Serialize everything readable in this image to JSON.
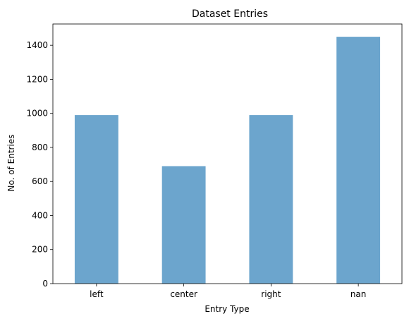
{
  "chart_data": {
    "type": "bar",
    "title": "Dataset Entries",
    "xlabel": "Entry Type",
    "ylabel": "No. of Entries",
    "categories": [
      "left",
      "center",
      "right",
      "nan"
    ],
    "values": [
      990,
      690,
      990,
      1450
    ],
    "ylim": [
      0,
      1525
    ],
    "yticks": [
      0,
      200,
      400,
      600,
      800,
      1000,
      1200,
      1400
    ],
    "bar_color": "#6ca5cd",
    "grid": false,
    "legend": "none"
  }
}
